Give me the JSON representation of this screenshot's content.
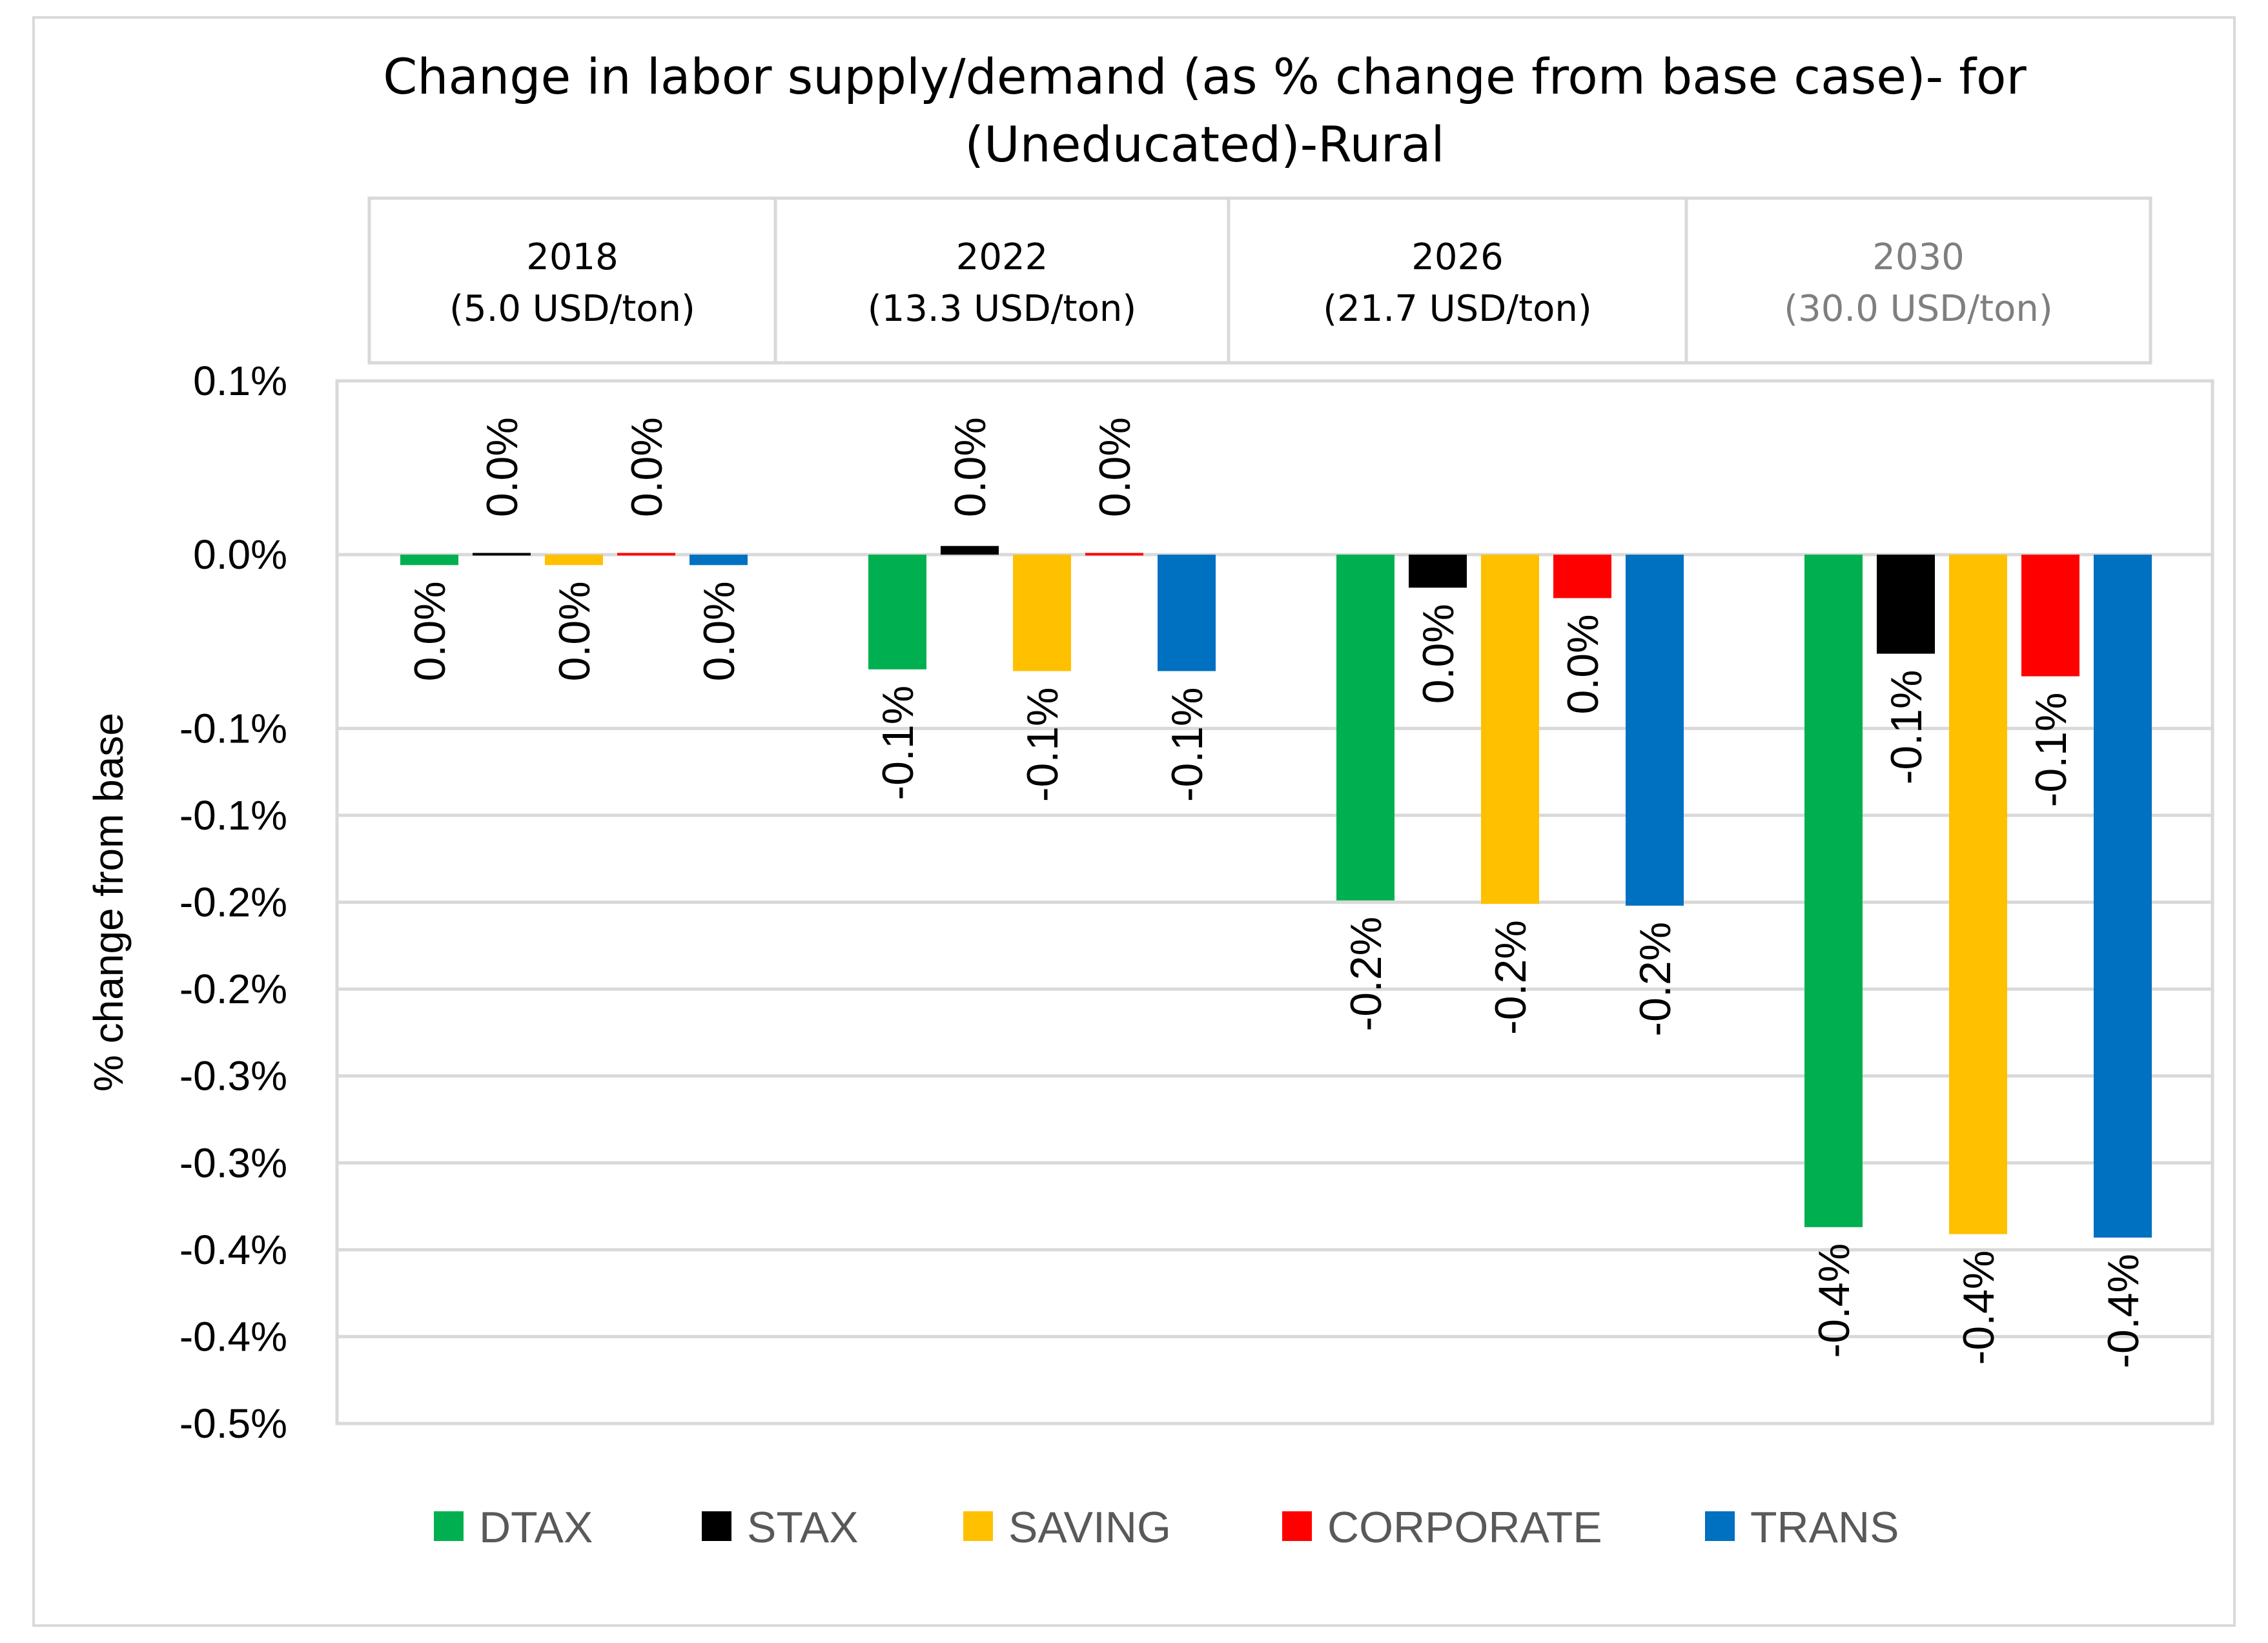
{
  "chart_data": {
    "type": "bar",
    "title": "Change in labor supply/demand (as % change from base case)- for (Uneducated)-Rural",
    "title_lines": [
      "Change in labor supply/demand (as % change from base case)- for",
      "(Uneducated)-Rural"
    ],
    "ylabel": "% change from base",
    "xlabel": "",
    "ylim": [
      -0.5,
      0.1
    ],
    "y_ticks": [
      0.1,
      0.0,
      -0.1,
      -0.15,
      -0.2,
      -0.25,
      -0.3,
      -0.35,
      -0.4,
      -0.45,
      -0.5
    ],
    "y_tick_labels": [
      "0.1%",
      "0.0%",
      "-0.1%",
      "-0.1%",
      "-0.2%",
      "-0.2%",
      "-0.3%",
      "-0.3%",
      "-0.4%",
      "-0.4%",
      "-0.5%"
    ],
    "grid": true,
    "legend_position": "bottom",
    "categories": [
      "2018",
      "2022",
      "2026",
      "2030"
    ],
    "category_headers": [
      {
        "year": "2018",
        "price": "(5.0 USD/ton)"
      },
      {
        "year": "2022",
        "price": "(13.3 USD/ton)"
      },
      {
        "year": "2026",
        "price": "(21.7 USD/ton)"
      },
      {
        "year": "2030",
        "price": "(30.0 USD/ton)"
      }
    ],
    "series": [
      {
        "name": "DTAX",
        "color": "#00b050",
        "values": [
          -0.006,
          -0.066,
          -0.199,
          -0.387
        ],
        "labels": [
          "0.0%",
          "-0.1%",
          "-0.2%",
          "-0.4%"
        ]
      },
      {
        "name": "STAX",
        "color": "#000000",
        "values": [
          0.001,
          0.005,
          -0.019,
          -0.057
        ],
        "labels": [
          "0.0%",
          "0.0%",
          "0.0%",
          "-0.1%"
        ]
      },
      {
        "name": "SAVING",
        "color": "#ffc000",
        "values": [
          -0.006,
          -0.067,
          -0.201,
          -0.391
        ],
        "labels": [
          "0.0%",
          "-0.1%",
          "-0.2%",
          "-0.4%"
        ]
      },
      {
        "name": "CORPORATE",
        "color": "#ff0000",
        "values": [
          0.001,
          0.001,
          -0.025,
          -0.07
        ],
        "labels": [
          "0.0%",
          "0.0%",
          "0.0%",
          "-0.1%"
        ]
      },
      {
        "name": "TRANS",
        "color": "#0070c0",
        "values": [
          -0.006,
          -0.067,
          -0.202,
          -0.393
        ],
        "labels": [
          "0.0%",
          "-0.1%",
          "-0.2%",
          "-0.4%"
        ]
      }
    ]
  }
}
